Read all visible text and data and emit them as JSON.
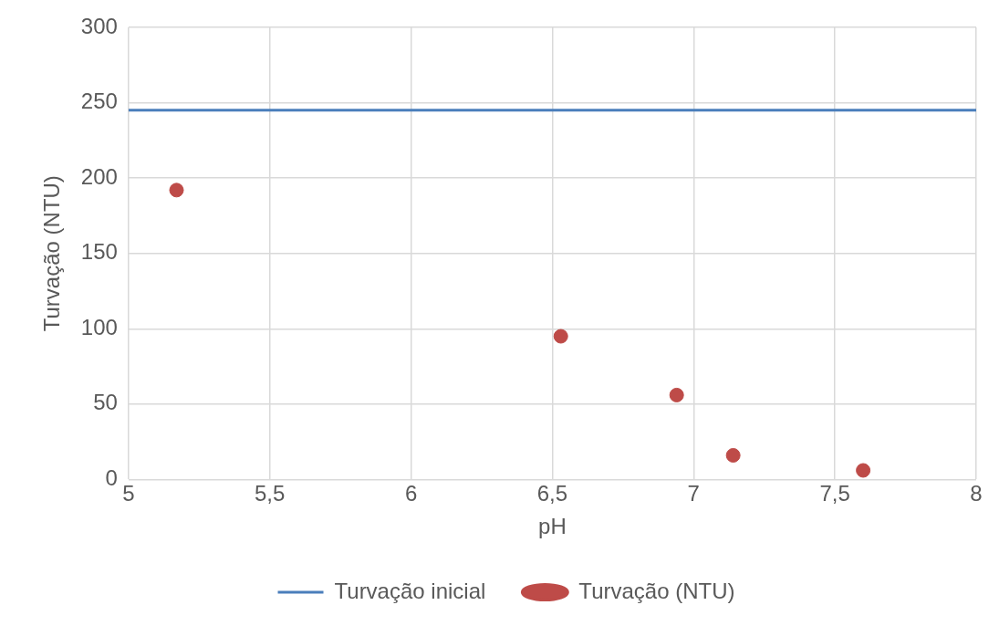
{
  "chart_data": {
    "type": "scatter",
    "xlabel": "pH",
    "ylabel": "Turvação (NTU)",
    "series": [
      {
        "name": "Turvação inicial",
        "type": "line",
        "color": "#4a7ebb",
        "x": [
          5,
          8
        ],
        "values": [
          245,
          245
        ],
        "marker": "none"
      },
      {
        "name": "Turvação (NTU)",
        "type": "scatter",
        "color": "#be4b48",
        "x": [
          5.17,
          6.53,
          6.94,
          7.14,
          7.6
        ],
        "values": [
          192,
          95,
          56,
          16,
          6
        ],
        "marker": "circle"
      }
    ],
    "xlim": [
      5,
      8
    ],
    "xticks": [
      5,
      {
        "value": 5.5,
        "label": "5,5"
      },
      6,
      {
        "value": 6.5,
        "label": "6,5"
      },
      7,
      {
        "value": 7.5,
        "label": "7,5"
      },
      8
    ],
    "ylim": [
      0,
      300
    ],
    "yticks": [
      0,
      50,
      100,
      150,
      200,
      250,
      300
    ],
    "grid": true,
    "legend": "bottom"
  }
}
